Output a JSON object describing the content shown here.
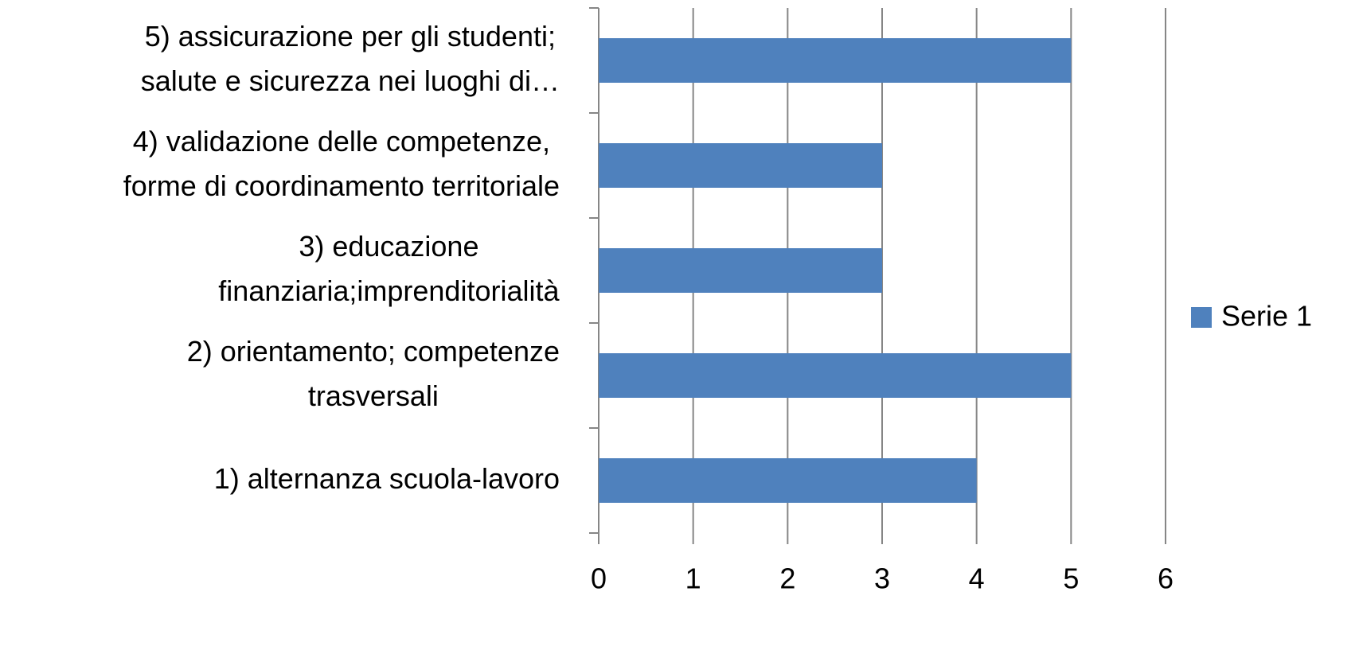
{
  "chart_data": {
    "type": "bar",
    "orientation": "horizontal",
    "categories": [
      [
        "1) alternanza scuola-lavoro"
      ],
      [
        "2) orientamento; competenze",
        "trasversali"
      ],
      [
        "3) educazione",
        "finanziaria;imprenditorialità"
      ],
      [
        "4) validazione delle competenze,",
        "forme di coordinamento territoriale"
      ],
      [
        "5) assicurazione per gli studenti;",
        "salute e sicurezza nei luoghi di…"
      ]
    ],
    "series": [
      {
        "name": "Serie 1",
        "color": "#4f81bd",
        "values": [
          4,
          5,
          3,
          3,
          5
        ]
      }
    ],
    "xlim": [
      0,
      6
    ],
    "xticks": [
      0,
      1,
      2,
      3,
      4,
      5,
      6
    ],
    "grid": true,
    "legend": "right"
  }
}
